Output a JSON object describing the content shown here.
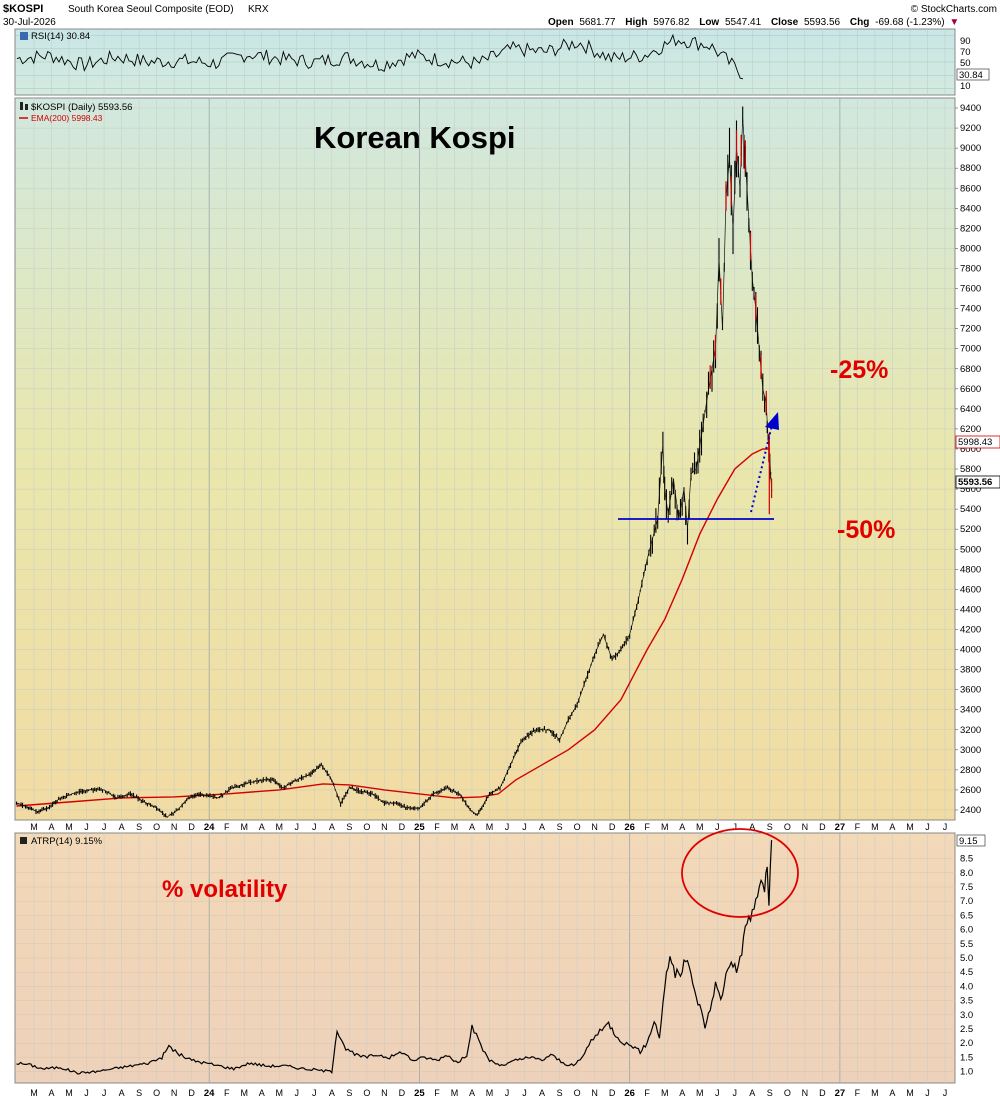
{
  "header": {
    "symbol": "$KOSPI",
    "name": "South Korea Seoul Composite (EOD)",
    "exchange": "KRX",
    "date": "30-Jul-2026",
    "brand": "© StockCharts.com",
    "open_label": "Open",
    "open": "5681.77",
    "high_label": "High",
    "high": "5976.82",
    "low_label": "Low",
    "low": "5547.41",
    "close_label": "Close",
    "close": "5593.56",
    "chg_label": "Chg",
    "chg": "-69.68 (-1.23%)",
    "chg_arrow": "▼"
  },
  "rsi_panel": {
    "legend": "RSI(14) 30.84",
    "badge": "30.84",
    "ticks": [
      "90",
      "70",
      "50",
      "30",
      "10"
    ]
  },
  "price_panel": {
    "legend_main": "$KOSPI (Daily) 5593.56",
    "legend_ema": "EMA(200) 5998.43",
    "annotation_title": "Korean Kospi",
    "annotation_25": "-25%",
    "annotation_50": "-50%",
    "badge_ema": "5998.43",
    "badge_close": "5593.56",
    "y_ticks": [
      "9400",
      "9200",
      "9000",
      "8800",
      "8600",
      "8400",
      "8200",
      "8000",
      "7800",
      "7600",
      "7400",
      "7200",
      "7000",
      "6800",
      "6600",
      "6400",
      "6200",
      "6000",
      "5800",
      "5600",
      "5400",
      "5200",
      "5000",
      "4800",
      "4600",
      "4400",
      "4200",
      "4000",
      "3800",
      "3600",
      "3400",
      "3200",
      "3000",
      "2800",
      "2600",
      "2400"
    ]
  },
  "atr_panel": {
    "legend": "ATRP(14) 9.15%",
    "annotation": "% volatility",
    "badge": "9.15",
    "y_ticks": [
      "8.5",
      "8.0",
      "7.5",
      "7.0",
      "6.5",
      "6.0",
      "5.5",
      "5.0",
      "4.5",
      "4.0",
      "3.5",
      "3.0",
      "2.5",
      "2.0",
      "1.5",
      "1.0"
    ]
  },
  "x_axis": [
    "M",
    "A",
    "M",
    "J",
    "J",
    "A",
    "S",
    "O",
    "N",
    "D",
    "24",
    "F",
    "M",
    "A",
    "M",
    "J",
    "J",
    "A",
    "S",
    "O",
    "N",
    "D",
    "25",
    "F",
    "M",
    "A",
    "M",
    "J",
    "J",
    "A",
    "S",
    "O",
    "N",
    "D",
    "26",
    "F",
    "M",
    "A",
    "M",
    "J",
    "J",
    "A",
    "S",
    "O",
    "N",
    "D",
    "27",
    "F",
    "M",
    "A",
    "M",
    "J",
    "J"
  ],
  "colors": {
    "price_line": "#000000",
    "ema_line": "#d40000",
    "support_line": "#0000cc",
    "projection_arrow": "#0000cc",
    "annotation_red": "#e00000",
    "circle": "#e00000"
  },
  "chart_data": [
    {
      "type": "line",
      "title": "RSI(14) 30.84",
      "ylim": [
        0,
        100
      ],
      "series": [
        {
          "name": "RSI(14)",
          "values": [
            55,
            60,
            45,
            58,
            50,
            52,
            48,
            62,
            55,
            50,
            57,
            45,
            60,
            52,
            48,
            70,
            65,
            80,
            55,
            60,
            85,
            75,
            30.84
          ]
        }
      ]
    },
    {
      "type": "line",
      "title": "$KOSPI (Daily) 5593.56",
      "x": [
        "2023-03",
        "2023-05",
        "2023-07",
        "2023-09",
        "2023-11",
        "2024-01",
        "2024-03",
        "2024-05",
        "2024-07",
        "2024-09",
        "2024-11",
        "2025-01",
        "2025-03",
        "2025-05",
        "2025-07",
        "2025-09",
        "2025-11",
        "2026-01",
        "2026-03",
        "2026-05",
        "2026-06",
        "2026-07"
      ],
      "ylim": [
        2300,
        9500
      ],
      "series": [
        {
          "name": "$KOSPI",
          "values": [
            2460,
            2520,
            2600,
            2460,
            2350,
            2660,
            2700,
            2600,
            2820,
            2580,
            2480,
            2520,
            2600,
            2500,
            3100,
            3400,
            4100,
            4800,
            5300,
            6400,
            9000,
            5593.56
          ]
        },
        {
          "name": "EMA(200)",
          "values": [
            2430,
            2460,
            2490,
            2510,
            2520,
            2540,
            2570,
            2590,
            2630,
            2620,
            2580,
            2540,
            2530,
            2520,
            2650,
            2900,
            3250,
            3800,
            4600,
            5200,
            5800,
            5998.43
          ]
        }
      ],
      "annotations": [
        "Korean Kospi",
        "-25%",
        "-50%"
      ]
    },
    {
      "type": "line",
      "title": "ATRP(14) 9.15%",
      "ylim": [
        0.5,
        9.5
      ],
      "series": [
        {
          "name": "ATRP(14)",
          "values": [
            1.3,
            1.1,
            0.9,
            1.2,
            1.9,
            1.2,
            1.1,
            1.0,
            1.0,
            2.6,
            1.3,
            1.3,
            1.2,
            2.6,
            1.2,
            1.2,
            1.0,
            2.8,
            1.8,
            5.0,
            2.6,
            5.5,
            9.15
          ]
        }
      ]
    }
  ]
}
